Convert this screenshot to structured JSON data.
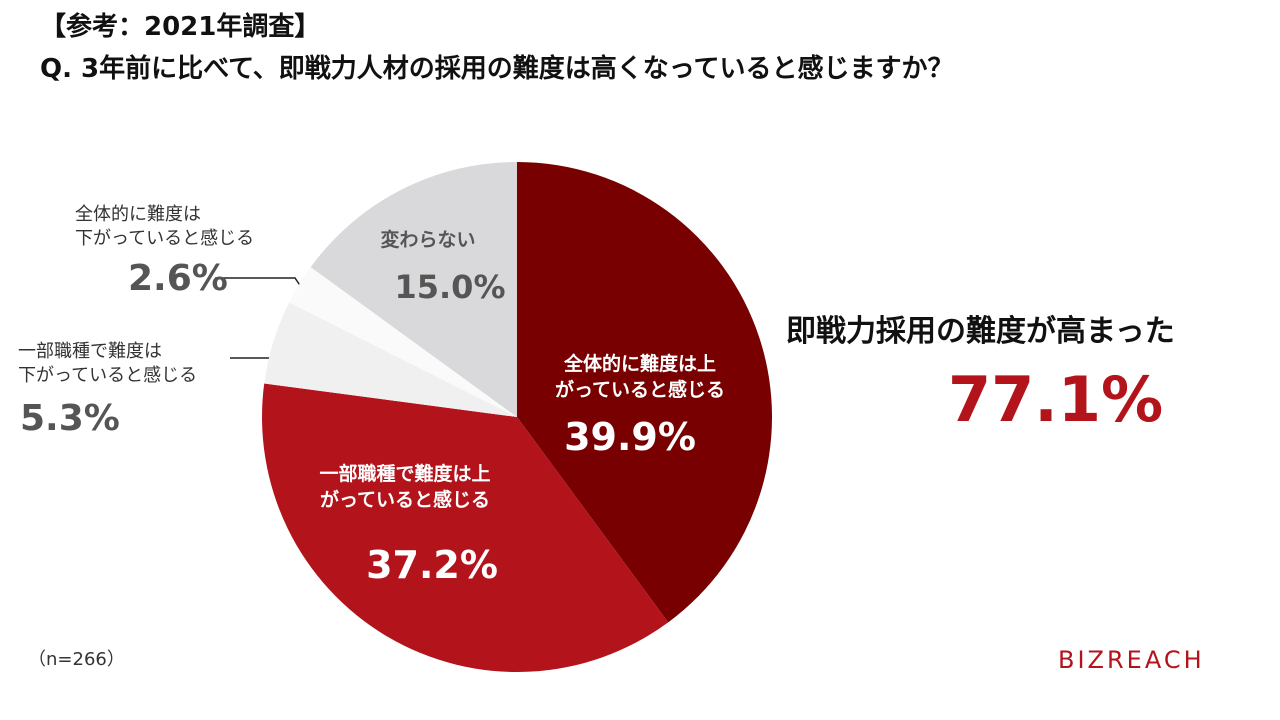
{
  "chart_data": {
    "type": "pie",
    "title": "【参考：2021年調査】",
    "subtitle": "Q. 3年前に比べて、即戦力人材の採用の難度は高くなっていると感じますか？",
    "categories": [
      "全体的に難度は上\nがっていると感じる",
      "一部職種で難度は上\nがっていると感じる",
      "一部職種で難度は\n下がっていると感じる",
      "全体的に難度は\n下がっていると感じる",
      "変わらない"
    ],
    "values": [
      39.9,
      37.2,
      5.3,
      2.6,
      15.0
    ],
    "value_labels": [
      "39.9%",
      "37.2%",
      "5.3%",
      "2.6%",
      "15.0%"
    ],
    "colors": [
      "#780000",
      "#b3141c",
      "#f0f0f0",
      "#fafafa",
      "#d9d9db"
    ],
    "summary": {
      "label": "即戦力採用の難度が高まった",
      "value": "77.1%"
    },
    "note": "（n=266）",
    "brand": "BIZREACH"
  }
}
